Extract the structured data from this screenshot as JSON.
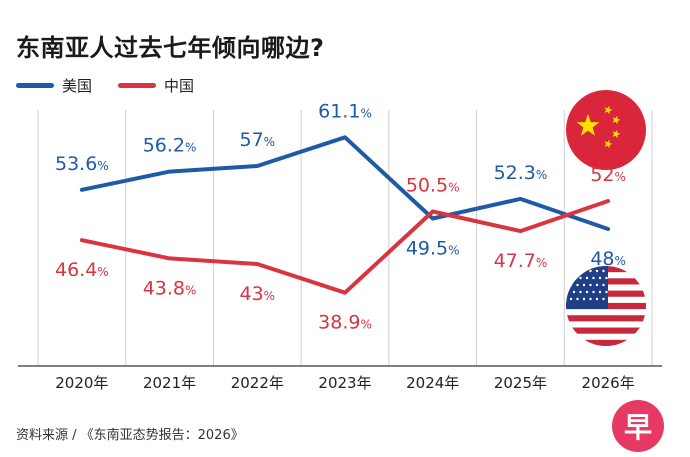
{
  "chart_data": {
    "type": "line",
    "title": "东南亚人过去七年倾向哪边?",
    "categories": [
      "2020年",
      "2021年",
      "2022年",
      "2023年",
      "2024年",
      "2025年",
      "2026年"
    ],
    "ylim": [
      35,
      65
    ],
    "unit": "%",
    "grid": "vertical",
    "series": [
      {
        "name": "美国",
        "color": "#1f5aa6",
        "values": [
          53.6,
          56.2,
          57,
          61.1,
          49.5,
          52.3,
          48
        ],
        "labels": [
          "53.6",
          "56.2",
          "57",
          "61.1",
          "49.5",
          "52.3",
          "48"
        ]
      },
      {
        "name": "中国",
        "color": "#d9343f",
        "values": [
          46.4,
          43.8,
          43,
          38.9,
          50.5,
          47.7,
          52
        ],
        "labels": [
          "46.4",
          "43.8",
          "43",
          "38.9",
          "50.5",
          "47.7",
          "52"
        ]
      }
    ]
  },
  "source_text": "资料来源 / 《东南亚态势报告：2026》",
  "logo_text": "早",
  "flags": [
    {
      "name": "china-flag-icon",
      "colors": [
        "#d9263a",
        "#ffde00"
      ]
    },
    {
      "name": "usa-flag-icon",
      "colors": [
        "#1f3f87",
        "#c8283b",
        "#ffffff"
      ]
    }
  ]
}
